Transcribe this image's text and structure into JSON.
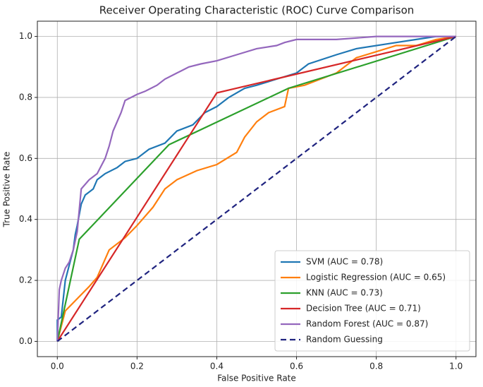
{
  "chart_data": {
    "type": "line",
    "title": "Receiver Operating Characteristic (ROC) Curve Comparison",
    "xlabel": "False Positive Rate",
    "ylabel": "True Positive Rate",
    "xlim": [
      -0.05,
      1.05
    ],
    "ylim": [
      -0.05,
      1.05
    ],
    "xticks": [
      {
        "value": 0,
        "label": "0.0"
      },
      0.2,
      0.4,
      0.6,
      0.8,
      {
        "value": 1,
        "label": "1.0"
      }
    ],
    "yticks": [
      {
        "value": 0,
        "label": "0.0"
      },
      0.2,
      0.4,
      0.6,
      0.8,
      {
        "value": 1,
        "label": "1.0"
      }
    ],
    "grid": true,
    "legend": "lower right",
    "series": [
      {
        "name": "SVM (AUC = 0.78)",
        "color": "#1f77b4",
        "x": [
          0,
          0,
          0.01,
          0.02,
          0.03,
          0.04,
          0.045,
          0.05,
          0.06,
          0.07,
          0.09,
          0.1,
          0.12,
          0.15,
          0.17,
          0.2,
          0.23,
          0.27,
          0.3,
          0.34,
          0.37,
          0.4,
          0.43,
          0.47,
          0.5,
          0.55,
          0.6,
          0.63,
          0.7,
          0.75,
          0.85,
          0.9,
          0.95,
          1
        ],
        "values": [
          0,
          0.07,
          0.08,
          0.2,
          0.25,
          0.3,
          0.35,
          0.38,
          0.45,
          0.48,
          0.5,
          0.53,
          0.55,
          0.57,
          0.59,
          0.6,
          0.63,
          0.65,
          0.69,
          0.71,
          0.75,
          0.77,
          0.8,
          0.83,
          0.84,
          0.86,
          0.88,
          0.91,
          0.94,
          0.96,
          0.98,
          0.99,
          1,
          1
        ]
      },
      {
        "name": "Logistic Regression (AUC = 0.65)",
        "color": "#ff7f0e",
        "x": [
          0,
          0.02,
          0.05,
          0.08,
          0.1,
          0.13,
          0.17,
          0.2,
          0.24,
          0.27,
          0.3,
          0.35,
          0.4,
          0.45,
          0.47,
          0.5,
          0.53,
          0.57,
          0.58,
          0.62,
          0.66,
          0.7,
          0.75,
          0.8,
          0.85,
          0.9,
          0.95,
          1
        ],
        "values": [
          0,
          0.1,
          0.14,
          0.18,
          0.21,
          0.3,
          0.34,
          0.38,
          0.44,
          0.5,
          0.53,
          0.56,
          0.58,
          0.62,
          0.67,
          0.72,
          0.75,
          0.77,
          0.83,
          0.84,
          0.86,
          0.88,
          0.93,
          0.95,
          0.97,
          0.97,
          0.99,
          1
        ]
      },
      {
        "name": "KNN (AUC = 0.73)",
        "color": "#2ca02c",
        "x": [
          0,
          0.055,
          0.28,
          0.58,
          1
        ],
        "values": [
          0,
          0.335,
          0.645,
          0.83,
          1
        ]
      },
      {
        "name": "Decision Tree (AUC = 0.71)",
        "color": "#d62728",
        "x": [
          0,
          0.4,
          1
        ],
        "values": [
          0,
          0.815,
          1
        ]
      },
      {
        "name": "Random Forest (AUC = 0.87)",
        "color": "#9467bd",
        "x": [
          0,
          0.005,
          0.01,
          0.02,
          0.03,
          0.04,
          0.05,
          0.06,
          0.08,
          0.1,
          0.12,
          0.13,
          0.14,
          0.16,
          0.17,
          0.2,
          0.22,
          0.25,
          0.27,
          0.3,
          0.33,
          0.36,
          0.4,
          0.45,
          0.5,
          0.55,
          0.57,
          0.6,
          0.7,
          0.8,
          1
        ],
        "values": [
          0,
          0.17,
          0.2,
          0.24,
          0.26,
          0.3,
          0.36,
          0.5,
          0.53,
          0.55,
          0.6,
          0.64,
          0.69,
          0.75,
          0.79,
          0.81,
          0.82,
          0.84,
          0.86,
          0.88,
          0.9,
          0.91,
          0.92,
          0.94,
          0.96,
          0.97,
          0.98,
          0.99,
          0.99,
          1,
          1
        ]
      },
      {
        "name": "Random Guessing",
        "color": "#1f237f",
        "linestyle": "dashed",
        "x": [
          0,
          1
        ],
        "values": [
          0,
          1
        ]
      }
    ]
  }
}
